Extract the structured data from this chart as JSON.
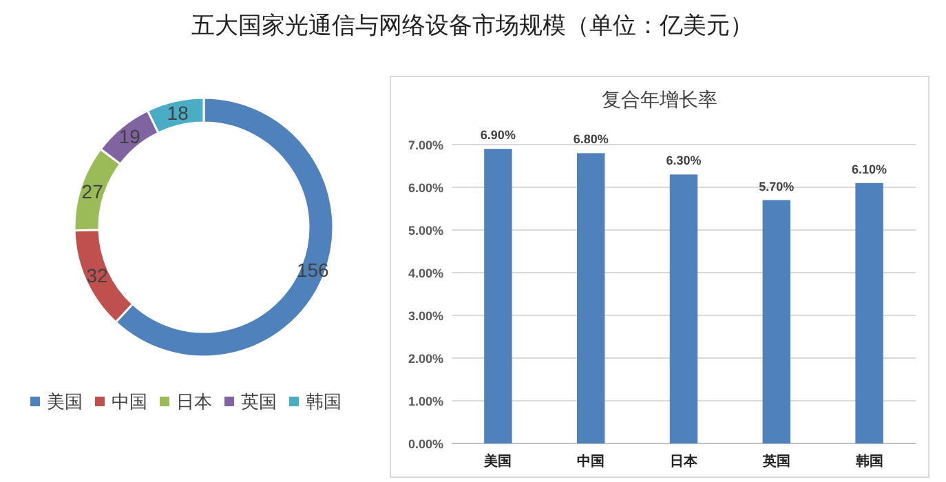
{
  "chart_data": [
    {
      "type": "donut",
      "title": "五大国家光通信与网络设备市场规模（单位：亿美元）",
      "categories": [
        "美国",
        "中国",
        "日本",
        "英国",
        "韩国"
      ],
      "values": [
        156,
        32,
        27,
        19,
        18
      ],
      "colors": [
        "#4f81bd",
        "#c0504d",
        "#9bbb59",
        "#8064a2",
        "#4bacc6"
      ],
      "data_labels": true,
      "legend": "bottom"
    },
    {
      "type": "bar",
      "title": "复合年增长率",
      "categories": [
        "美国",
        "中国",
        "日本",
        "英国",
        "韩国"
      ],
      "values": [
        6.9,
        6.8,
        6.3,
        5.7,
        6.1
      ],
      "color": "#4f81bd",
      "value_labels": [
        "6.90%",
        "6.80%",
        "6.30%",
        "5.70%",
        "6.10%"
      ],
      "ylim": [
        0,
        7
      ],
      "yticks": [
        {
          "value": 0,
          "label": "0.00%"
        },
        {
          "value": 1,
          "label": "1.00%"
        },
        {
          "value": 2,
          "label": "2.00%"
        },
        {
          "value": 3,
          "label": "3.00%"
        },
        {
          "value": 4,
          "label": "4.00%"
        },
        {
          "value": 5,
          "label": "5.00%"
        },
        {
          "value": 6,
          "label": "6.00%"
        },
        {
          "value": 7,
          "label": "7.00%"
        }
      ],
      "grid": "y"
    }
  ]
}
